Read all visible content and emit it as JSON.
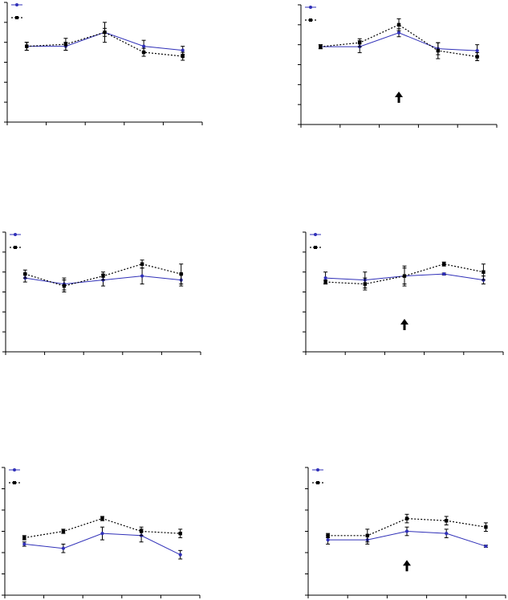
{
  "colors": {
    "series_a": "#3030b8",
    "series_b": "#000000"
  },
  "chart_data": [
    {
      "type": "line",
      "x": [
        1,
        2,
        3,
        4,
        5
      ],
      "ylim": [
        0,
        6
      ],
      "arrow_at_x": null,
      "series": [
        {
          "values": [
            3.8,
            3.8,
            4.5,
            3.8,
            3.6
          ],
          "err": [
            0.2,
            0.2,
            0.2,
            0.3,
            0.2
          ]
        },
        {
          "values": [
            3.8,
            3.9,
            4.5,
            3.5,
            3.3
          ],
          "err": [
            0.2,
            0.3,
            0.5,
            0.2,
            0.2
          ]
        }
      ]
    },
    {
      "type": "line",
      "x": [
        1,
        2,
        3,
        4,
        5
      ],
      "ylim": [
        0,
        6
      ],
      "arrow_at_x": 3,
      "series": [
        {
          "values": [
            3.9,
            3.9,
            4.6,
            3.8,
            3.7
          ],
          "err": [
            0.1,
            0.3,
            0.2,
            0.3,
            0.3
          ]
        },
        {
          "values": [
            3.9,
            4.1,
            5.0,
            3.7,
            3.4
          ],
          "err": [
            0.1,
            0.2,
            0.3,
            0.4,
            0.2
          ]
        }
      ]
    },
    {
      "type": "line",
      "x": [
        1,
        2,
        3,
        4,
        5
      ],
      "ylim": [
        0,
        6
      ],
      "arrow_at_x": null,
      "series": [
        {
          "values": [
            3.7,
            3.4,
            3.6,
            3.8,
            3.6
          ],
          "err": [
            0.2,
            0.3,
            0.3,
            0.4,
            0.3
          ]
        },
        {
          "values": [
            3.9,
            3.3,
            3.8,
            4.4,
            3.9
          ],
          "err": [
            0.2,
            0.3,
            0.2,
            0.2,
            0.5
          ]
        }
      ]
    },
    {
      "type": "line",
      "x": [
        1,
        2,
        3,
        4,
        5
      ],
      "ylim": [
        0,
        6
      ],
      "arrow_at_x": 3,
      "series": [
        {
          "values": [
            3.7,
            3.6,
            3.8,
            3.9,
            3.6
          ],
          "err": [
            0.3,
            0.4,
            0.4,
            0.05,
            0.2
          ]
        },
        {
          "values": [
            3.5,
            3.4,
            3.8,
            4.4,
            4.0
          ],
          "err": [
            0.1,
            0.3,
            0.5,
            0.1,
            0.4
          ]
        }
      ]
    },
    {
      "type": "line",
      "x": [
        1,
        2,
        3,
        4,
        5
      ],
      "ylim": [
        0,
        6
      ],
      "arrow_at_x": null,
      "series": [
        {
          "values": [
            2.4,
            2.2,
            2.9,
            2.8,
            1.9
          ],
          "err": [
            0.1,
            0.2,
            0.3,
            0.3,
            0.2
          ]
        },
        {
          "values": [
            2.7,
            3.0,
            3.6,
            3.0,
            2.9
          ],
          "err": [
            0.1,
            0.1,
            0.1,
            0.2,
            0.2
          ]
        }
      ]
    },
    {
      "type": "line",
      "x": [
        1,
        2,
        3,
        4,
        5
      ],
      "ylim": [
        0,
        6
      ],
      "arrow_at_x": 3,
      "series": [
        {
          "values": [
            2.6,
            2.6,
            3.0,
            2.9,
            2.3
          ],
          "err": [
            0.2,
            0.2,
            0.2,
            0.2,
            0.05
          ]
        },
        {
          "values": [
            2.8,
            2.8,
            3.6,
            3.5,
            3.2
          ],
          "err": [
            0.1,
            0.3,
            0.2,
            0.2,
            0.2
          ]
        }
      ]
    }
  ]
}
